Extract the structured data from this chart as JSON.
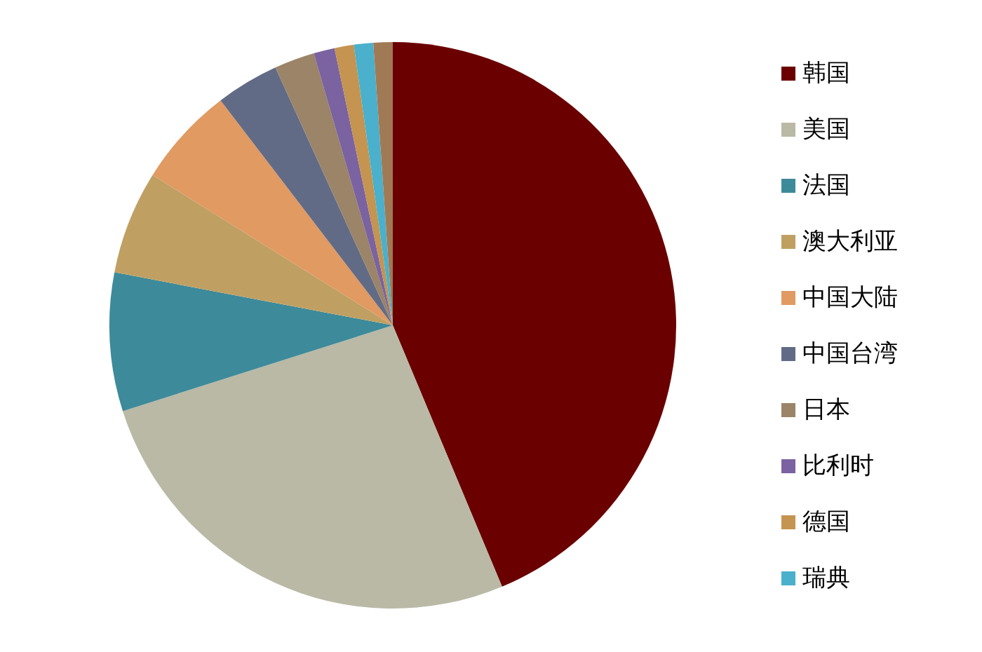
{
  "chart_data": {
    "type": "pie",
    "legend": "right",
    "categories": [
      "韩国",
      "美国",
      "法国",
      "澳大利亚",
      "中国大陆",
      "中国台湾",
      "日本",
      "比利时",
      "德国",
      "瑞典",
      null
    ],
    "values": [
      43.7,
      26.4,
      7.9,
      5.9,
      5.7,
      3.6,
      2.3,
      1.2,
      1.1,
      1.1,
      1.1
    ],
    "colors": [
      "#6b0000",
      "#b9b9a6",
      "#3d8a9a",
      "#c0a062",
      "#e09a62",
      "#626b86",
      "#9b8467",
      "#7b62a0",
      "#c49450",
      "#4ab0cc",
      "#a07a55"
    ]
  }
}
